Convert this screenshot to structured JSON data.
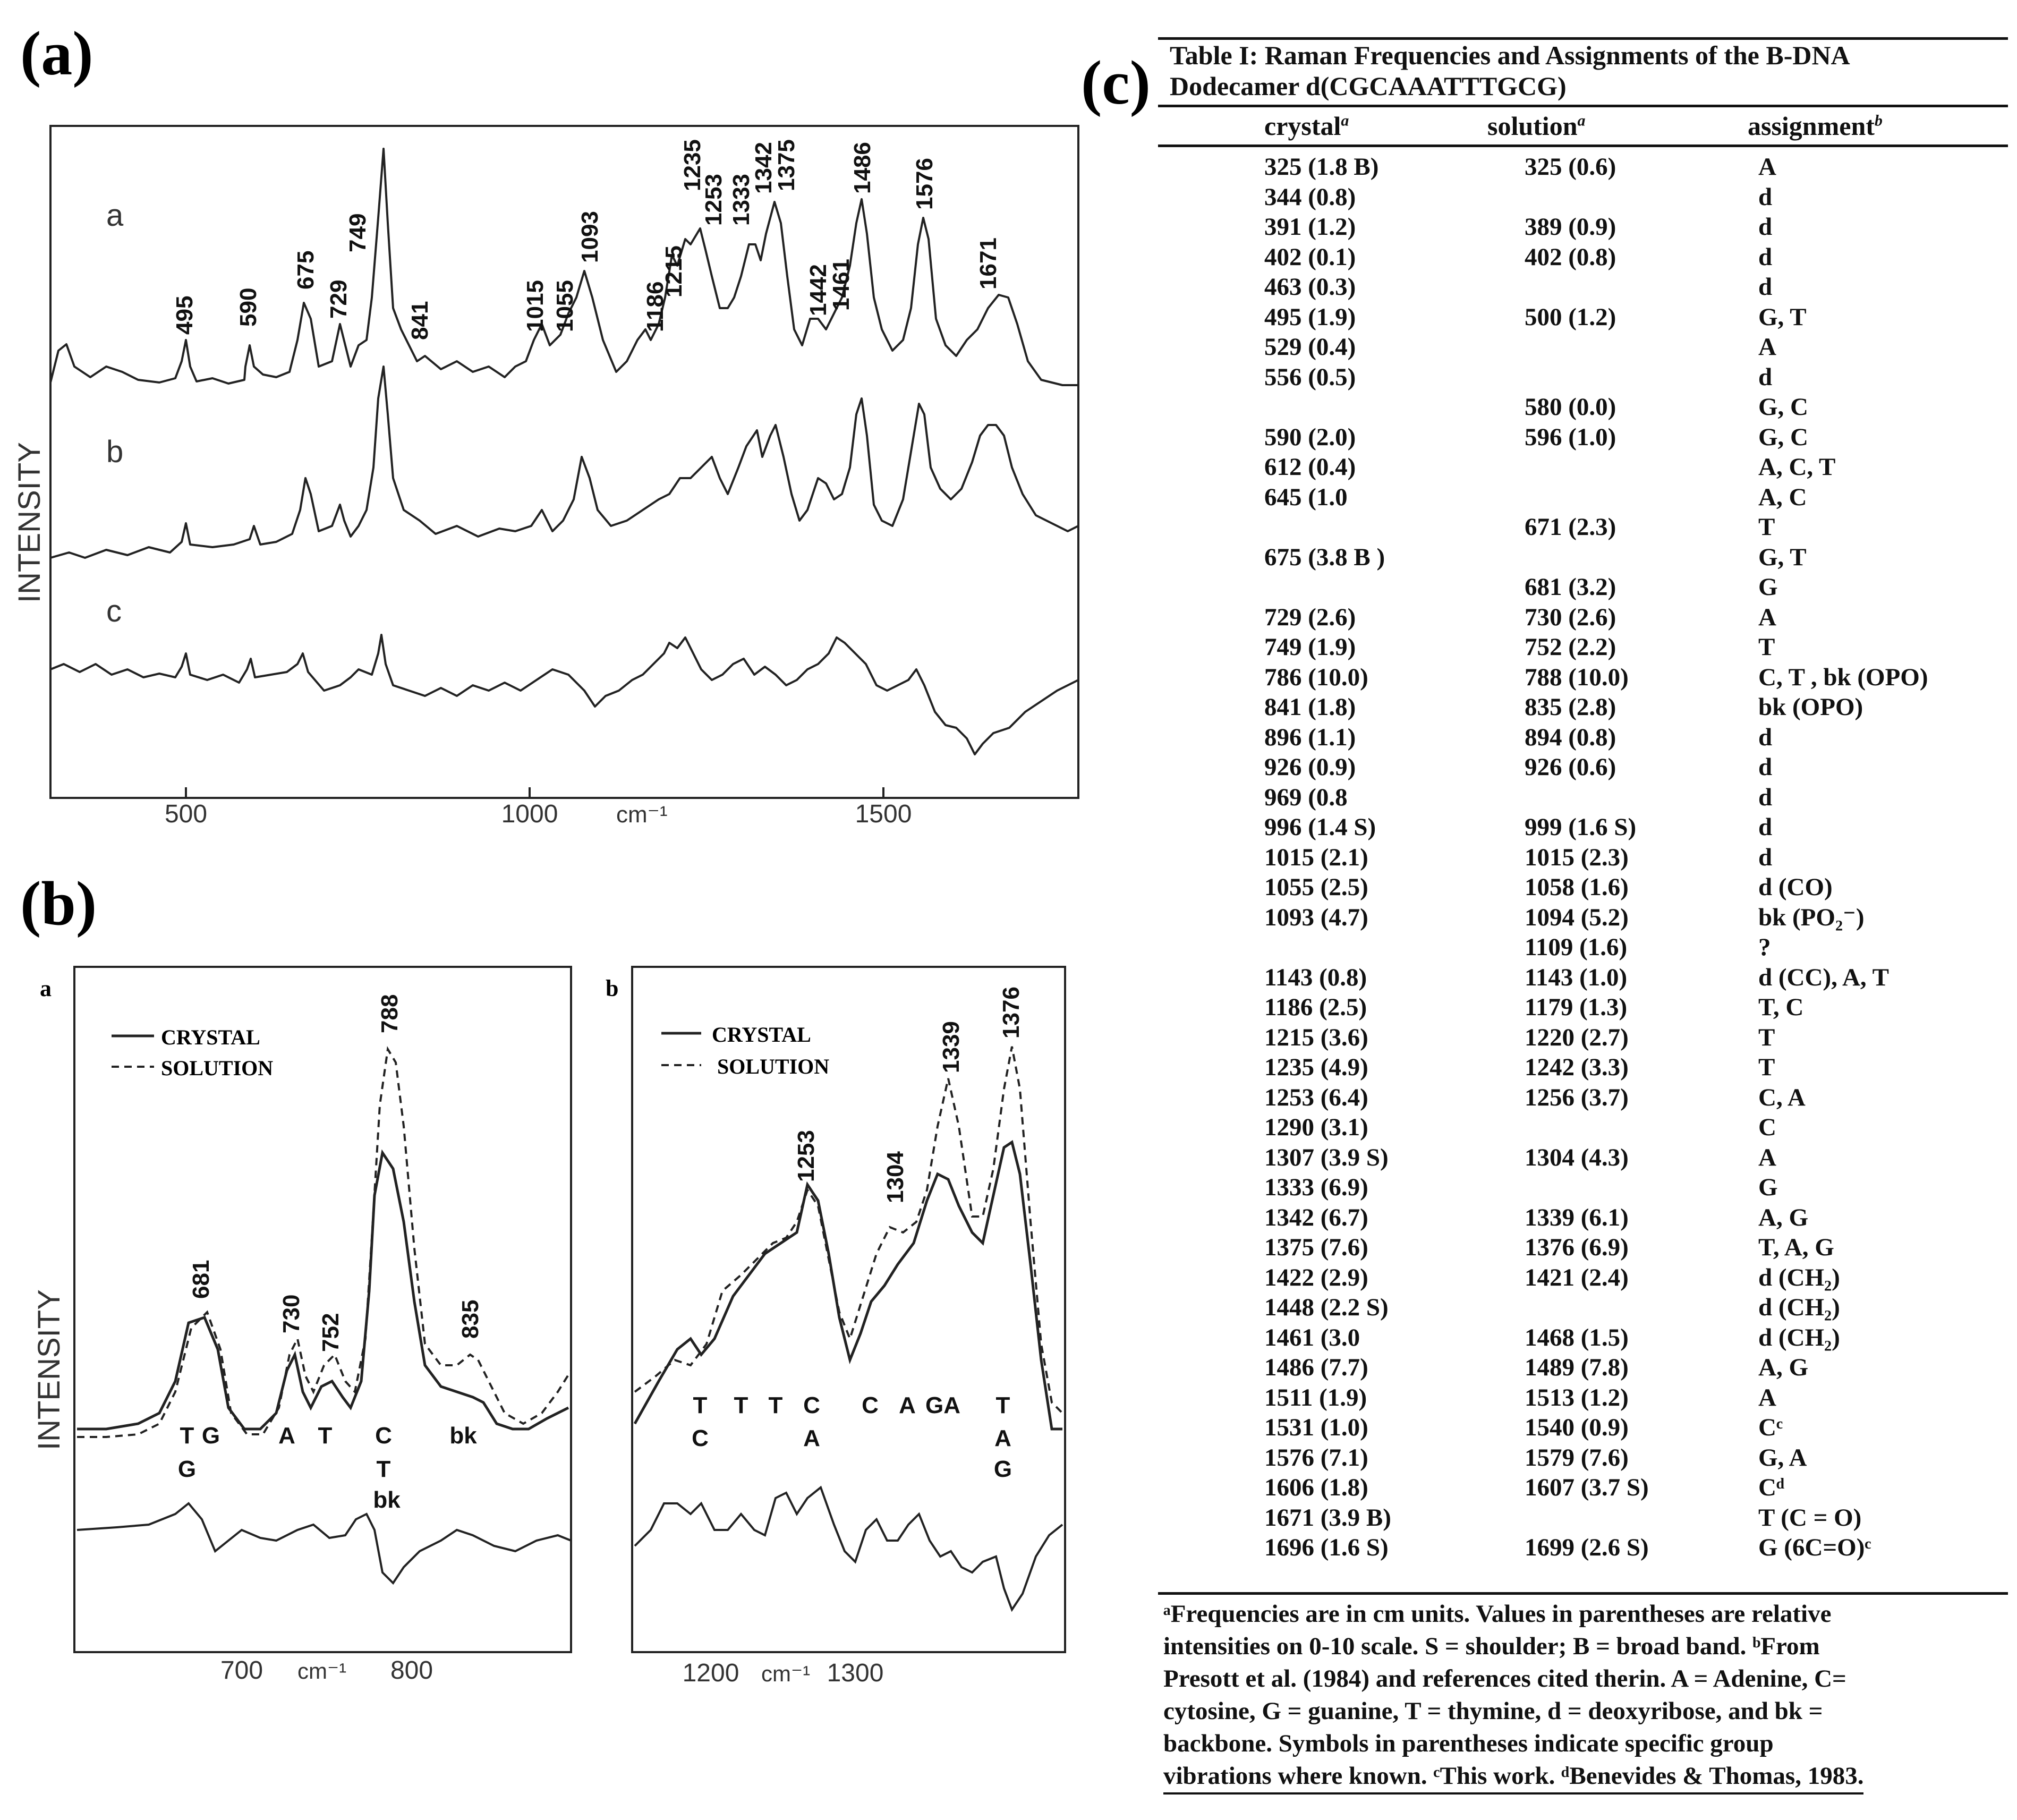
{
  "panel_labels": {
    "a": "(a)",
    "b": "(b)",
    "c": "(c)"
  },
  "panel_a": {
    "ylabel": "INTENSITY",
    "trace_labels": [
      "a",
      "b",
      "c"
    ],
    "xticks": [
      "500",
      "1000",
      "1500"
    ],
    "xunit": "cm⁻¹",
    "peaks": [
      "495",
      "590",
      "675",
      "729",
      "749",
      "841",
      "1015",
      "1055",
      "1093",
      "1186",
      "1215",
      "1235",
      "1253",
      "1333",
      "1342",
      "1375",
      "1442",
      "1461",
      "1486",
      "1576",
      "1671"
    ]
  },
  "panel_b": {
    "ylabel": "INTENSITY",
    "sub_a": {
      "label": "a",
      "legend": [
        "CRYSTAL",
        "SOLUTION"
      ],
      "peaks": [
        "681",
        "730",
        "752",
        "788",
        "835"
      ],
      "assign_row1": [
        "T",
        "G",
        "A",
        "T",
        "C",
        "bk"
      ],
      "assign_row2": [
        "G",
        "T"
      ],
      "assign_row3": [
        "bk"
      ],
      "xticks": [
        "700",
        "800"
      ],
      "xunit": "cm⁻¹"
    },
    "sub_b": {
      "label": "b",
      "legend": [
        "CRYSTAL",
        "SOLUTION"
      ],
      "peaks": [
        "1253",
        "1304",
        "1339",
        "1376"
      ],
      "assign_row1": [
        "T",
        "T",
        "T",
        "C",
        "C",
        "A",
        "GA",
        "T"
      ],
      "assign_row2": [
        "C",
        "A",
        "A"
      ],
      "assign_row3": [
        "G"
      ],
      "xticks": [
        "1200",
        "1300"
      ],
      "xunit": "cm⁻¹"
    }
  },
  "table": {
    "caption_line1": "Table I:  Raman Frequencies and Assignments of the B-DNA",
    "caption_line2": "Dodecamer d(CGCAAATTTGCG)",
    "headers": {
      "crystal": "crystal",
      "solution": "solution",
      "assignment": "assignment",
      "crystal_mark": "a",
      "solution_mark": "a",
      "assignment_mark": "b"
    },
    "rows": [
      {
        "crystal": "325 (1.8 B)",
        "solution": "325 (0.6)",
        "assignment": "A",
        "y": 0
      },
      {
        "crystal": "344 (0.8)",
        "solution": "",
        "assignment": "d",
        "y": 1
      },
      {
        "crystal": "391 (1.2)",
        "solution": "389 (0.9)",
        "assignment": "d",
        "y": 2
      },
      {
        "crystal": "402 (0.1)",
        "solution": "402  (0.8)",
        "assignment": "d",
        "y": 3
      },
      {
        "crystal": "463 (0.3)",
        "solution": "",
        "assignment": "d",
        "y": 4
      },
      {
        "crystal": "495 (1.9)",
        "solution": "500 (1.2)",
        "assignment": "G, T",
        "y": 5
      },
      {
        "crystal": "529 (0.4)",
        "solution": "",
        "assignment": "A",
        "y": 6
      },
      {
        "crystal": "556 (0.5)",
        "solution": "",
        "assignment": "d",
        "y": 7
      },
      {
        "crystal": "",
        "solution": "580  (0.0)",
        "assignment": "G, C",
        "y": 8
      },
      {
        "crystal": "590 (2.0)",
        "solution": "596 (1.0)",
        "assignment": "G, C",
        "y": 9
      },
      {
        "crystal": "612 (0.4)",
        "solution": "",
        "assignment": "A, C,  T",
        "y": 10
      },
      {
        "crystal": "645 (1.0",
        "solution": "",
        "assignment": "A,  C",
        "y": 11
      },
      {
        "crystal": "",
        "solution": "671  (2.3)",
        "assignment": "T",
        "y": 12
      },
      {
        "crystal": "675 (3.8  B )",
        "solution": "",
        "assignment": "G,  T",
        "y": 13
      },
      {
        "crystal": "",
        "solution": "681  (3.2)",
        "assignment": "G",
        "y": 14
      },
      {
        "crystal": "729  (2.6)",
        "solution": "730  (2.6)",
        "assignment": "A",
        "y": 15
      },
      {
        "crystal": "749  (1.9)",
        "solution": "752 (2.2)",
        "assignment": "T",
        "y": 16
      },
      {
        "crystal": "786  (10.0)",
        "solution": "788  (10.0)",
        "assignment": "C, T , bk (OPO)",
        "y": 17
      },
      {
        "crystal": "841  (1.8)",
        "solution": "835 (2.8)",
        "assignment": "bk (OPO)",
        "y": 18
      },
      {
        "crystal": "896  (1.1)",
        "solution": "894 (0.8)",
        "assignment": "d",
        "y": 19
      },
      {
        "crystal": "926  (0.9)",
        "solution": "926  (0.6)",
        "assignment": "d",
        "y": 20
      },
      {
        "crystal": "969  (0.8",
        "solution": "",
        "assignment": "d",
        "y": 21
      },
      {
        "crystal": "996  (1.4 S)",
        "solution": "999  (1.6  S)",
        "assignment": "d",
        "y": 22
      },
      {
        "crystal": "1015  (2.1)",
        "solution": "1015  (2.3)",
        "assignment": "d",
        "y": 23
      },
      {
        "crystal": "1055  (2.5)",
        "solution": "1058  (1.6)",
        "assignment": "d (CO)",
        "y": 24
      },
      {
        "crystal": "1093  (4.7)",
        "solution": "1094 (5.2)",
        "assignment": "bk (PO₂⁻)",
        "y": 25
      },
      {
        "crystal": "",
        "solution": "1109 (1.6)",
        "assignment": "?",
        "y": 26
      },
      {
        "crystal": "1143  (0.8)",
        "solution": "1143 (1.0)",
        "assignment": "d (CC),  A, T",
        "y": 27
      },
      {
        "crystal": "1186  (2.5)",
        "solution": "1179 (1.3)",
        "assignment": "T,  C",
        "y": 28
      },
      {
        "crystal": "1215  (3.6)",
        "solution": "1220 (2.7)",
        "assignment": "T",
        "y": 29
      },
      {
        "crystal": "1235 (4.9)",
        "solution": "1242 (3.3)",
        "assignment": "T",
        "y": 30
      },
      {
        "crystal": "1253 (6.4)",
        "solution": "1256 (3.7)",
        "assignment": "C, A",
        "y": 31
      },
      {
        "crystal": "1290 (3.1)",
        "solution": "",
        "assignment": "C",
        "y": 32
      },
      {
        "crystal": "1307 (3.9  S)",
        "solution": "1304  (4.3)",
        "assignment": "A",
        "y": 33
      },
      {
        "crystal": "1333 (6.9)",
        "solution": "",
        "assignment": "G",
        "y": 34
      },
      {
        "crystal": "1342 (6.7)",
        "solution": "1339  (6.1)",
        "assignment": "A, G",
        "y": 35
      },
      {
        "crystal": "1375 (7.6)",
        "solution": "1376  (6.9)",
        "assignment": "T,  A, G",
        "y": 36
      },
      {
        "crystal": "1422 (2.9)",
        "solution": "1421  (2.4)",
        "assignment": "d  (CH₂)",
        "y": 37
      },
      {
        "crystal": "1448 (2.2 S)",
        "solution": "",
        "assignment": "d  (CH₂)",
        "y": 38
      },
      {
        "crystal": "1461 (3.0",
        "solution": "1468  (1.5)",
        "assignment": "d  (CH₂)",
        "y": 39
      },
      {
        "crystal": "1486 (7.7)",
        "solution": "1489  (7.8)",
        "assignment": "A, G",
        "y": 40
      },
      {
        "crystal": "1511 (1.9)",
        "solution": "1513  (1.2)",
        "assignment": "A",
        "y": 41
      },
      {
        "crystal": "1531 (1.0)",
        "solution": "1540  (0.9)",
        "assignment": "Cᶜ",
        "y": 42
      },
      {
        "crystal": "1576 (7.1)",
        "solution": "1579 (7.6)",
        "assignment": "G, A",
        "y": 43
      },
      {
        "crystal": "1606 (1.8)",
        "solution": "1607 (3.7 S)",
        "assignment": "Cᵈ",
        "y": 44
      },
      {
        "crystal": "1671 (3.9 B)",
        "solution": "",
        "assignment": "T (C = O)",
        "y": 45
      },
      {
        "crystal": "1696 (1.6 S)",
        "solution": "1699 (2.6 S)",
        "assignment": "G (6C=O)ᶜ",
        "y": 46
      }
    ],
    "footnote_lines": [
      "ᵃFrequencies are in cm   units. Values in parentheses are relative",
      "intensities on 0-10 scale. S = shoulder; B = broad band.  ᵇFrom",
      "Presott et al. (1984) and references cited therin. A = Adenine, C=",
      "cytosine, G = guanine, T = thymine, d = deoxyribose, and bk =",
      "backbone. Symbols in parentheses indicate specific group",
      "vibrations where known.  ᶜThis work.  ᵈBenevides & Thomas, 1983."
    ]
  }
}
